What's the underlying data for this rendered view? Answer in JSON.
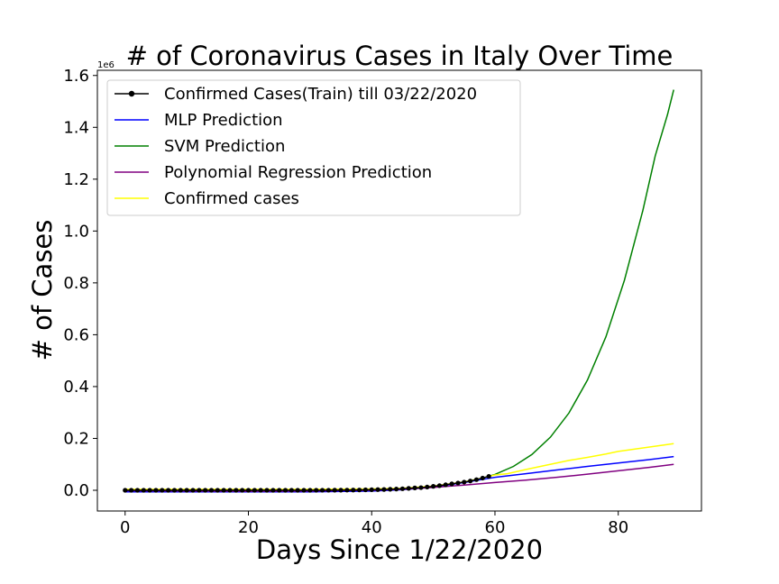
{
  "chart_data": {
    "type": "line",
    "title": "# of Coronavirus Cases in Italy Over Time",
    "xlabel": "Days Since 1/22/2020",
    "ylabel": "# of Cases",
    "y_offset_label": "1e6",
    "xlim": [
      -4.5,
      93.5
    ],
    "ylim": [
      -0.08,
      1.62
    ],
    "x_ticks": [
      0,
      20,
      40,
      60,
      80
    ],
    "x_tick_labels": [
      "0",
      "20",
      "40",
      "60",
      "80"
    ],
    "y_ticks": [
      0.0,
      0.2,
      0.4,
      0.6,
      0.8,
      1.0,
      1.2,
      1.4,
      1.6
    ],
    "y_tick_labels": [
      "0.0",
      "0.2",
      "0.4",
      "0.6",
      "0.8",
      "1.0",
      "1.2",
      "1.4",
      "1.6"
    ],
    "grid": false,
    "legend_position": "top-left",
    "series": [
      {
        "name": "Confirmed Cases(Train) till 03/22/2020",
        "color": "#000000",
        "marker": "circle",
        "x": [
          0,
          1,
          2,
          3,
          4,
          5,
          6,
          7,
          8,
          9,
          10,
          11,
          12,
          13,
          14,
          15,
          16,
          17,
          18,
          19,
          20,
          21,
          22,
          23,
          24,
          25,
          26,
          27,
          28,
          29,
          30,
          31,
          32,
          33,
          34,
          35,
          36,
          37,
          38,
          39,
          40,
          41,
          42,
          43,
          44,
          45,
          46,
          47,
          48,
          49,
          50,
          51,
          52,
          53,
          54,
          55,
          56,
          57,
          58,
          59
        ],
        "values": [
          0,
          0,
          0,
          0,
          0,
          0,
          0,
          0,
          2e-06,
          2e-06,
          2e-06,
          2e-06,
          2e-06,
          2e-06,
          3e-06,
          3e-06,
          3e-06,
          3e-06,
          3e-06,
          3e-06,
          3e-06,
          3e-06,
          3e-06,
          3e-06,
          3e-06,
          3e-06,
          3e-06,
          3e-06,
          3e-06,
          3e-06,
          2e-05,
          6.2e-05,
          0.000155,
          0.000229,
          0.000322,
          0.000453,
          0.000655,
          0.000888,
          0.001128,
          0.001694,
          0.002036,
          0.002502,
          0.003089,
          0.003858,
          0.004636,
          0.005883,
          0.007375,
          0.009172,
          0.010149,
          0.012462,
          0.015113,
          0.01766,
          0.021157,
          0.024747,
          0.02798,
          0.031506,
          0.035713,
          0.041035,
          0.047021,
          0.053578
        ]
      },
      {
        "name": "MLP Prediction",
        "color": "#0000ff",
        "x": [
          0,
          10,
          20,
          30,
          40,
          45,
          50,
          55,
          60,
          65,
          70,
          75,
          80,
          85,
          89
        ],
        "values": [
          -0.006,
          -0.006,
          -0.006,
          -0.006,
          -0.003,
          0.002,
          0.012,
          0.03,
          0.05,
          0.064,
          0.078,
          0.092,
          0.105,
          0.118,
          0.13
        ]
      },
      {
        "name": "SVM Prediction",
        "color": "#008000",
        "x": [
          0,
          10,
          20,
          30,
          40,
          45,
          50,
          55,
          58,
          60,
          63,
          66,
          69,
          72,
          75,
          78,
          81,
          84,
          86,
          88,
          89
        ],
        "values": [
          0,
          0,
          0,
          0,
          0.002,
          0.006,
          0.015,
          0.032,
          0.047,
          0.061,
          0.092,
          0.138,
          0.205,
          0.298,
          0.425,
          0.592,
          0.81,
          1.08,
          1.29,
          1.45,
          1.545
        ]
      },
      {
        "name": "Polynomial Regression Prediction",
        "color": "#800080",
        "x": [
          0,
          10,
          20,
          30,
          40,
          45,
          50,
          55,
          60,
          65,
          70,
          75,
          80,
          85,
          89
        ],
        "values": [
          -0.002,
          -0.003,
          -0.004,
          -0.003,
          0.0,
          0.004,
          0.011,
          0.02,
          0.03,
          0.039,
          0.05,
          0.062,
          0.075,
          0.088,
          0.1
        ]
      },
      {
        "name": "Confirmed cases",
        "color": "#ffff00",
        "x": [
          0,
          10,
          20,
          30,
          40,
          45,
          50,
          55,
          58,
          60,
          62,
          65,
          68,
          70,
          72,
          75,
          78,
          80,
          83,
          86,
          89
        ],
        "values": [
          0.004,
          0.004,
          0.004,
          0.004,
          0.005,
          0.008,
          0.016,
          0.032,
          0.047,
          0.059,
          0.064,
          0.08,
          0.095,
          0.105,
          0.115,
          0.127,
          0.14,
          0.15,
          0.16,
          0.17,
          0.18
        ]
      }
    ]
  }
}
